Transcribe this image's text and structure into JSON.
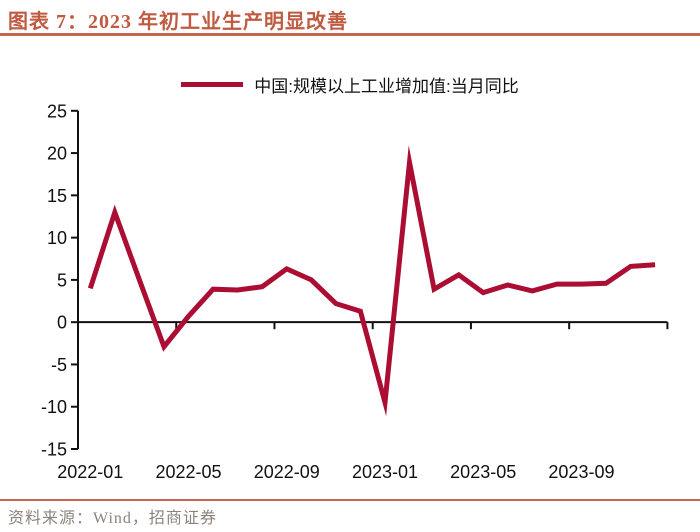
{
  "header": {
    "title": "图表 7：2023 年初工业生产明显改善"
  },
  "legend": {
    "label": "中国:规模以上工业增加值:当月同比"
  },
  "footer": {
    "source": "资料来源：Wind，招商证券"
  },
  "colors": {
    "line": "#AB0E32",
    "title": "#C05B41",
    "rule": "#C2664E",
    "axis": "#111111",
    "footer_text": "#8B837B"
  },
  "chart_data": {
    "type": "line",
    "title": "",
    "xlabel": "",
    "ylabel": "",
    "categories": [
      "2022-01",
      "2022-02",
      "2022-03",
      "2022-04",
      "2022-05",
      "2022-06",
      "2022-07",
      "2022-08",
      "2022-09",
      "2022-10",
      "2022-11",
      "2022-12",
      "2023-01",
      "2023-02",
      "2023-03",
      "2023-04",
      "2023-05",
      "2023-06",
      "2023-07",
      "2023-08",
      "2023-09",
      "2023-10",
      "2023-11",
      "2023-12"
    ],
    "series": [
      {
        "name": "中国:规模以上工业增加值:当月同比",
        "values": [
          4.0,
          13.0,
          5.0,
          -2.9,
          0.7,
          3.9,
          3.8,
          4.2,
          6.3,
          5.0,
          2.2,
          1.3,
          -9.5,
          18.9,
          3.9,
          5.6,
          3.5,
          4.4,
          3.7,
          4.5,
          4.5,
          4.6,
          6.6,
          6.8
        ]
      }
    ],
    "xtick_labels": [
      "2022-01",
      "2022-05",
      "2022-09",
      "2023-01",
      "2023-05",
      "2023-09"
    ],
    "ytick_labels": [
      "25",
      "20",
      "15",
      "10",
      "5",
      "0",
      "-5",
      "-10",
      "-15"
    ],
    "ylim": [
      -15,
      25
    ],
    "ytick_step": 5,
    "grid": false,
    "legend_position": "top-center"
  }
}
